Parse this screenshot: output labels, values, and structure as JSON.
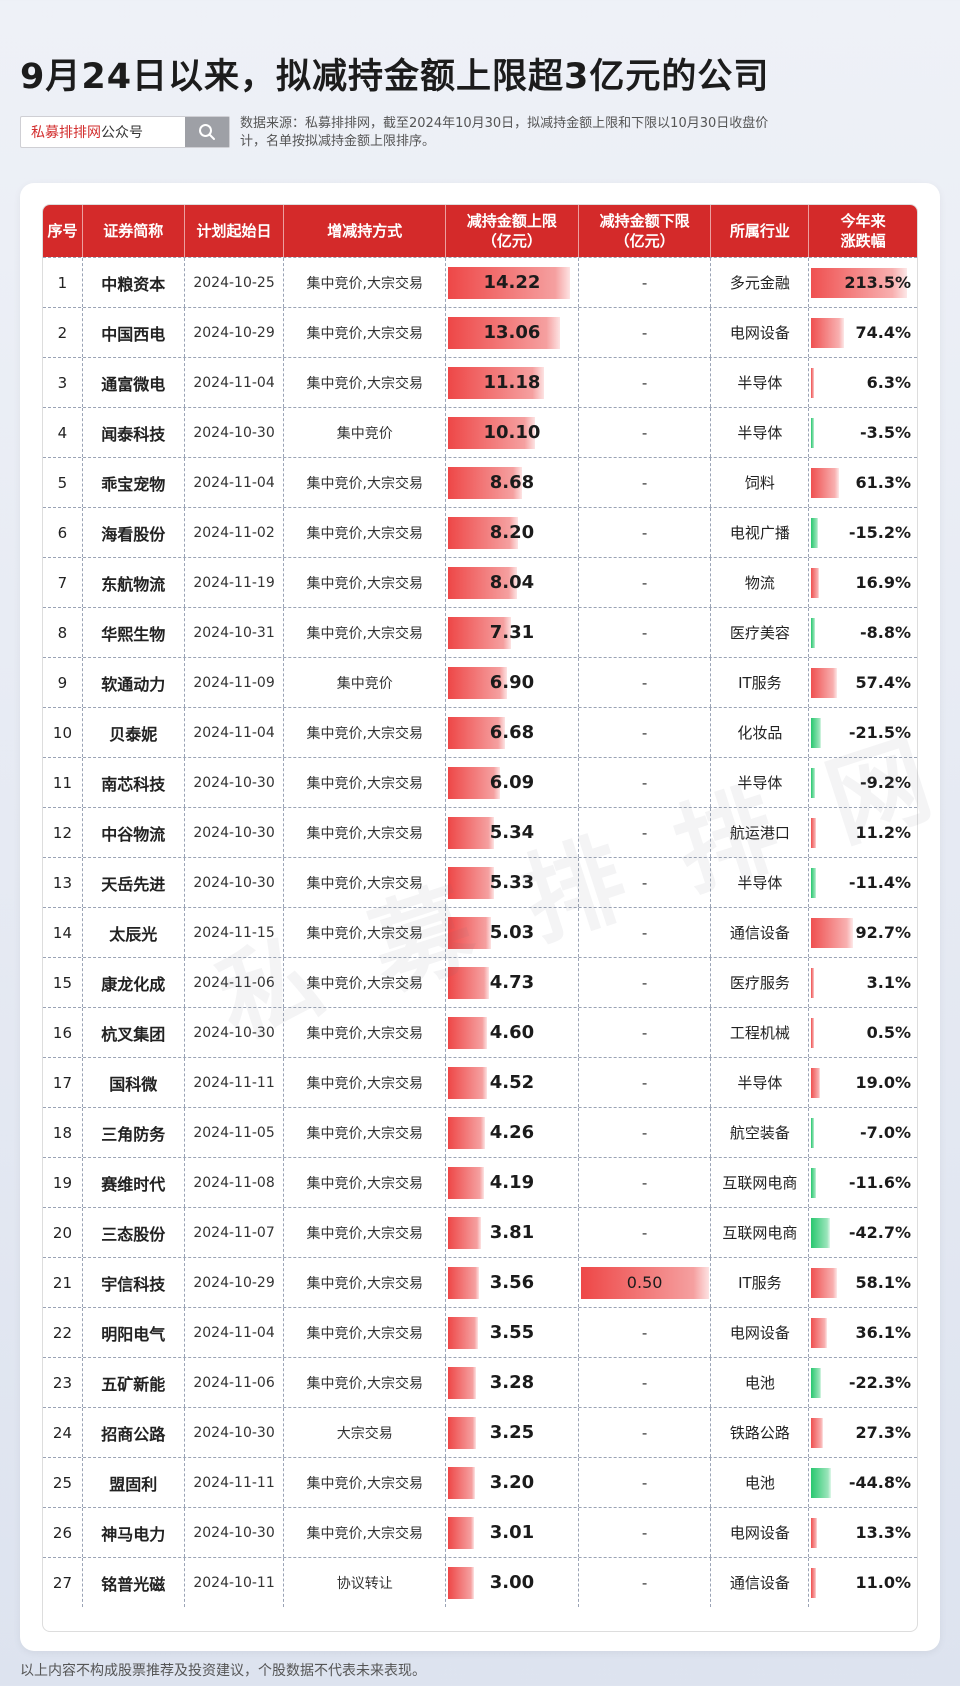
{
  "title": "9月24日以来，拟减持金额上限超3亿元的公司",
  "search": {
    "brand": "私募排排网",
    "suffix": "公众号",
    "icon": "search-icon"
  },
  "source_note": "数据来源：私募排排网，截至2024年10月30日，拟减持金额上限和下限以10月30日收盘价计，名单按拟减持金额上限排序。",
  "watermark": "私募排排网",
  "headers": [
    "序号",
    "证券简称",
    "计划起始日",
    "增减持方式",
    "减持金额上限\n（亿元）",
    "减持金额下限\n（亿元）",
    "所属行业",
    "今年来\n涨跌幅"
  ],
  "header_lines": {
    "h4a": "减持金额上限",
    "h4b": "（亿元）",
    "h5a": "减持金额下限",
    "h5b": "（亿元）",
    "h7a": "今年来",
    "h7b": "涨跌幅"
  },
  "upper_max": 14.22,
  "chg_max": 213.5,
  "colors": {
    "header": "#d42a2a",
    "positive": "#ee4747",
    "negative": "#28c76f"
  },
  "rows": [
    {
      "no": "1",
      "name": "中粮资本",
      "date": "2024-10-25",
      "method": "集中竞价,大宗交易",
      "upper": "14.22",
      "lower": "-",
      "industry": "多元金融",
      "change": "213.5%"
    },
    {
      "no": "2",
      "name": "中国西电",
      "date": "2024-10-29",
      "method": "集中竞价,大宗交易",
      "upper": "13.06",
      "lower": "-",
      "industry": "电网设备",
      "change": "74.4%"
    },
    {
      "no": "3",
      "name": "通富微电",
      "date": "2024-11-04",
      "method": "集中竞价,大宗交易",
      "upper": "11.18",
      "lower": "-",
      "industry": "半导体",
      "change": "6.3%"
    },
    {
      "no": "4",
      "name": "闻泰科技",
      "date": "2024-10-30",
      "method": "集中竞价",
      "upper": "10.10",
      "lower": "-",
      "industry": "半导体",
      "change": "-3.5%"
    },
    {
      "no": "5",
      "name": "乖宝宠物",
      "date": "2024-11-04",
      "method": "集中竞价,大宗交易",
      "upper": "8.68",
      "lower": "-",
      "industry": "饲料",
      "change": "61.3%"
    },
    {
      "no": "6",
      "name": "海看股份",
      "date": "2024-11-02",
      "method": "集中竞价,大宗交易",
      "upper": "8.20",
      "lower": "-",
      "industry": "电视广播",
      "change": "-15.2%"
    },
    {
      "no": "7",
      "name": "东航物流",
      "date": "2024-11-19",
      "method": "集中竞价,大宗交易",
      "upper": "8.04",
      "lower": "-",
      "industry": "物流",
      "change": "16.9%"
    },
    {
      "no": "8",
      "name": "华熙生物",
      "date": "2024-10-31",
      "method": "集中竞价,大宗交易",
      "upper": "7.31",
      "lower": "-",
      "industry": "医疗美容",
      "change": "-8.8%"
    },
    {
      "no": "9",
      "name": "软通动力",
      "date": "2024-11-09",
      "method": "集中竞价",
      "upper": "6.90",
      "lower": "-",
      "industry": "IT服务",
      "change": "57.4%"
    },
    {
      "no": "10",
      "name": "贝泰妮",
      "date": "2024-11-04",
      "method": "集中竞价,大宗交易",
      "upper": "6.68",
      "lower": "-",
      "industry": "化妆品",
      "change": "-21.5%"
    },
    {
      "no": "11",
      "name": "南芯科技",
      "date": "2024-10-30",
      "method": "集中竞价,大宗交易",
      "upper": "6.09",
      "lower": "-",
      "industry": "半导体",
      "change": "-9.2%"
    },
    {
      "no": "12",
      "name": "中谷物流",
      "date": "2024-10-30",
      "method": "集中竞价,大宗交易",
      "upper": "5.34",
      "lower": "-",
      "industry": "航运港口",
      "change": "11.2%"
    },
    {
      "no": "13",
      "name": "天岳先进",
      "date": "2024-10-30",
      "method": "集中竞价,大宗交易",
      "upper": "5.33",
      "lower": "-",
      "industry": "半导体",
      "change": "-11.4%"
    },
    {
      "no": "14",
      "name": "太辰光",
      "date": "2024-11-15",
      "method": "集中竞价,大宗交易",
      "upper": "5.03",
      "lower": "-",
      "industry": "通信设备",
      "change": "92.7%"
    },
    {
      "no": "15",
      "name": "康龙化成",
      "date": "2024-11-06",
      "method": "集中竞价,大宗交易",
      "upper": "4.73",
      "lower": "-",
      "industry": "医疗服务",
      "change": "3.1%"
    },
    {
      "no": "16",
      "name": "杭叉集团",
      "date": "2024-10-30",
      "method": "集中竞价,大宗交易",
      "upper": "4.60",
      "lower": "-",
      "industry": "工程机械",
      "change": "0.5%"
    },
    {
      "no": "17",
      "name": "国科微",
      "date": "2024-11-11",
      "method": "集中竞价,大宗交易",
      "upper": "4.52",
      "lower": "-",
      "industry": "半导体",
      "change": "19.0%"
    },
    {
      "no": "18",
      "name": "三角防务",
      "date": "2024-11-05",
      "method": "集中竞价,大宗交易",
      "upper": "4.26",
      "lower": "-",
      "industry": "航空装备",
      "change": "-7.0%"
    },
    {
      "no": "19",
      "name": "赛维时代",
      "date": "2024-11-08",
      "method": "集中竞价,大宗交易",
      "upper": "4.19",
      "lower": "-",
      "industry": "互联网电商",
      "change": "-11.6%"
    },
    {
      "no": "20",
      "name": "三态股份",
      "date": "2024-11-07",
      "method": "集中竞价,大宗交易",
      "upper": "3.81",
      "lower": "-",
      "industry": "互联网电商",
      "change": "-42.7%"
    },
    {
      "no": "21",
      "name": "宇信科技",
      "date": "2024-10-29",
      "method": "集中竞价,大宗交易",
      "upper": "3.56",
      "lower": "0.50",
      "industry": "IT服务",
      "change": "58.1%"
    },
    {
      "no": "22",
      "name": "明阳电气",
      "date": "2024-11-04",
      "method": "集中竞价,大宗交易",
      "upper": "3.55",
      "lower": "-",
      "industry": "电网设备",
      "change": "36.1%"
    },
    {
      "no": "23",
      "name": "五矿新能",
      "date": "2024-11-06",
      "method": "集中竞价,大宗交易",
      "upper": "3.28",
      "lower": "-",
      "industry": "电池",
      "change": "-22.3%"
    },
    {
      "no": "24",
      "name": "招商公路",
      "date": "2024-10-30",
      "method": "大宗交易",
      "upper": "3.25",
      "lower": "-",
      "industry": "铁路公路",
      "change": "27.3%"
    },
    {
      "no": "25",
      "name": "盟固利",
      "date": "2024-11-11",
      "method": "集中竞价,大宗交易",
      "upper": "3.20",
      "lower": "-",
      "industry": "电池",
      "change": "-44.8%"
    },
    {
      "no": "26",
      "name": "神马电力",
      "date": "2024-10-30",
      "method": "集中竞价,大宗交易",
      "upper": "3.01",
      "lower": "-",
      "industry": "电网设备",
      "change": "13.3%"
    },
    {
      "no": "27",
      "name": "铭普光磁",
      "date": "2024-10-11",
      "method": "协议转让",
      "upper": "3.00",
      "lower": "-",
      "industry": "通信设备",
      "change": "11.0%"
    }
  ],
  "disclaimer": "以上内容不构成股票推荐及投资建议，个股数据不代表未来表现。"
}
